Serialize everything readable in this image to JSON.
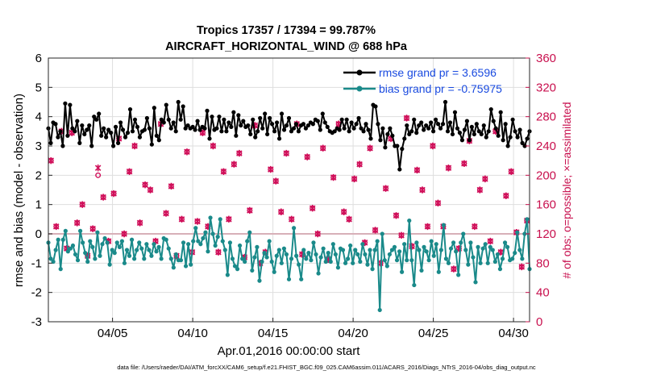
{
  "chart_data": {
    "type": "line",
    "title": [
      "Tropics 17357 / 17394 = 99.787%",
      "AIRCRAFT_HORIZONTAL_WIND @ 688 hPa"
    ],
    "xlabel": "Apr.01,2016 00:00:00 start",
    "ylabel_left": "rmse and bias (model - observation)",
    "ylabel_right": "# of obs: o=possible; ×=assimilated",
    "xlim": [
      1,
      31
    ],
    "ylim_left": [
      -3,
      6
    ],
    "ylim_right": [
      0,
      360
    ],
    "x_ticks": [
      {
        "value": 5,
        "label": "04/05"
      },
      {
        "value": 10,
        "label": "04/10"
      },
      {
        "value": 15,
        "label": "04/15"
      },
      {
        "value": 20,
        "label": "04/20"
      },
      {
        "value": 25,
        "label": "04/25"
      },
      {
        "value": 30,
        "label": "04/30"
      }
    ],
    "y_ticks_left": [
      "-3",
      "-2",
      "-1",
      "0",
      "1",
      "2",
      "3",
      "4",
      "5",
      "6"
    ],
    "y_ticks_right": [
      "0",
      "40",
      "80",
      "120",
      "160",
      "200",
      "240",
      "280",
      "320",
      "360"
    ],
    "grid": true,
    "legend_position": "top-right",
    "series": [
      {
        "name": "rmse grand pr = 3.6596",
        "color": "#000000",
        "marker": "dot",
        "values": [
          3.6,
          3.1,
          3.8,
          3.75,
          3.3,
          3.5,
          3.0,
          4.45,
          3.35,
          4.4,
          3.6,
          3.5,
          3.85,
          3.1,
          3.7,
          3.4,
          3.55,
          3.7,
          3.0,
          4.0,
          3.9,
          4.1,
          3.35,
          3.6,
          3.3,
          3.55,
          3.45,
          3.0,
          3.65,
          3.1,
          3.8,
          3.55,
          3.3,
          3.45,
          4.25,
          3.5,
          3.9,
          3.65,
          3.3,
          3.5,
          3.55,
          3.95,
          3.6,
          3.05,
          4.3,
          3.35,
          3.2,
          3.9,
          3.8,
          4.4,
          3.9,
          3.6,
          3.8,
          3.5,
          4.5,
          3.9,
          4.35,
          3.6,
          3.7,
          3.6,
          3.65,
          3.55,
          3.85,
          3.55,
          3.65,
          3.6,
          4.2,
          3.25,
          4.0,
          3.55,
          3.6,
          4.0,
          3.5,
          3.9,
          3.5,
          3.8,
          3.65,
          4.15,
          3.35,
          4.05,
          3.7,
          3.85,
          3.65,
          3.7,
          3.4,
          3.9,
          3.3,
          3.5,
          3.95,
          3.6,
          4.1,
          3.4,
          3.95,
          3.75,
          3.5,
          3.8,
          3.25,
          4.1,
          3.55,
          3.7,
          3.95,
          3.5,
          3.6,
          3.75,
          3.5,
          3.7,
          3.75,
          3.6,
          3.7,
          3.8,
          3.75,
          3.9,
          3.85,
          3.55,
          4.1,
          3.8,
          3.65,
          3.5,
          3.45,
          3.5,
          3.6,
          3.55,
          3.9,
          3.6,
          3.9,
          3.5,
          3.8,
          3.6,
          3.75,
          3.95,
          3.6,
          3.5,
          3.75,
          3.55,
          3.25,
          4.4,
          4.35,
          3.75,
          3.2,
          3.6,
          2.95,
          3.4,
          3.6,
          3.35,
          3.0,
          3.0,
          2.2,
          2.9,
          3.25,
          3.7,
          3.4,
          3.5,
          3.9,
          3.45,
          3.7,
          3.8,
          3.55,
          3.7,
          3.6,
          3.8,
          3.5,
          3.9,
          3.75,
          3.6,
          3.75,
          4.5,
          3.5,
          3.8,
          3.4,
          4.15,
          3.6,
          3.45,
          3.2,
          3.55,
          3.85,
          3.2,
          3.65,
          3.4,
          3.75,
          3.5,
          3.4,
          3.7,
          3.3,
          3.5,
          4.25,
          3.85,
          3.6,
          3.35,
          4.15,
          3.2,
          3.75,
          3.0,
          3.3,
          3.9,
          3.5,
          3.3,
          3.55,
          3.1,
          3.0,
          3.25,
          3.5
        ]
      },
      {
        "name": "bias grand pr = -0.75975",
        "color": "#1a8a8a",
        "marker": "dot",
        "values": [
          -0.3,
          -0.85,
          -0.95,
          -0.55,
          -0.2,
          -1.2,
          -0.2,
          0.1,
          -0.6,
          -0.5,
          -0.4,
          -0.7,
          -0.9,
          0.1,
          -0.3,
          -0.65,
          -0.95,
          -0.25,
          -0.45,
          -0.85,
          0.05,
          -0.75,
          -0.35,
          -0.15,
          -0.3,
          -1.05,
          -0.55,
          -0.65,
          -0.3,
          -0.45,
          -0.25,
          -1.0,
          -0.55,
          -0.75,
          -0.2,
          -0.85,
          -0.55,
          -0.3,
          -0.5,
          -0.85,
          -0.35,
          -0.55,
          -0.75,
          -0.35,
          -0.6,
          -0.45,
          -0.85,
          -0.15,
          -0.2,
          -0.5,
          -0.85,
          -1.15,
          -0.7,
          -0.9,
          -0.9,
          -0.3,
          -1.1,
          -0.35,
          -1.05,
          -0.25,
          0.2,
          -0.25,
          -0.35,
          -0.15,
          0.05,
          -0.6,
          0.55,
          0.0,
          -0.4,
          -0.1,
          0.5,
          -0.25,
          -0.55,
          -1.4,
          -0.3,
          -0.85,
          -1.1,
          -1.2,
          -0.4,
          -0.85,
          -0.95,
          -0.25,
          0.05,
          -1.25,
          -0.8,
          -0.45,
          -1.6,
          -0.95,
          -0.65,
          -0.8,
          -0.25,
          -0.95,
          -1.3,
          -0.75,
          -0.55,
          -1.0,
          -0.5,
          -0.7,
          -1.55,
          -0.85,
          0.2,
          -0.75,
          -1.05,
          -1.55,
          -0.55,
          -0.85,
          -0.65,
          -0.9,
          -0.3,
          -0.7,
          -1.35,
          -0.8,
          -0.5,
          -0.95,
          -0.65,
          -0.95,
          -0.35,
          -0.7,
          -1.15,
          -0.5,
          -0.55,
          -1.0,
          -0.85,
          -0.4,
          -1.0,
          -0.55,
          -0.7,
          -0.95,
          -0.35,
          -0.7,
          -1.05,
          -0.55,
          -1.2,
          -0.55,
          -0.25,
          -2.6,
          0.0,
          -0.9,
          -1.1,
          -0.7,
          -0.55,
          -0.45,
          -0.9,
          -0.6,
          -1.3,
          -0.35,
          -0.9,
          0.45,
          -0.9,
          -1.75,
          -0.3,
          -0.55,
          -1.25,
          -0.45,
          -0.6,
          -0.9,
          -0.25,
          -0.75,
          -0.35,
          -1.3,
          -0.55,
          0.3,
          -0.85,
          -1.0,
          -0.5,
          -0.3,
          -0.6,
          -1.4,
          -0.3,
          0.0,
          -0.55,
          -1.05,
          -0.3,
          -0.8,
          -1.65,
          -0.45,
          -1.0,
          -0.5,
          -0.35,
          -1.0,
          -0.45,
          -0.55,
          -0.95,
          -0.7,
          -1.2,
          -0.85,
          -0.3,
          -0.45,
          -0.9,
          -0.85,
          -0.65,
          0.05,
          -0.55,
          -0.85,
          0.0,
          0.5,
          -1.2
        ]
      }
    ],
    "obs_counts": {
      "possible": [
        220,
        130,
        260,
        100,
        258,
        135,
        160,
        90,
        127,
        200,
        170,
        110,
        175,
        250,
        120,
        205,
        240,
        135,
        187,
        180,
        110,
        270,
        148,
        185,
        90,
        140,
        232,
        95,
        137,
        258,
        130,
        240,
        95,
        205,
        140,
        215,
        230,
        88,
        152,
        268,
        80,
        95,
        208,
        192,
        150,
        230,
        140,
        270,
        92,
        225,
        155,
        120,
        237,
        85,
        197,
        270,
        150,
        140,
        195,
        215,
        108,
        237,
        125,
        80,
        182,
        250,
        145,
        118,
        278,
        103,
        207,
        180,
        130,
        240,
        162,
        130,
        210,
        72,
        100,
        216,
        247,
        130,
        180,
        195,
        110,
        260,
        95,
        172,
        205,
        122,
        75,
        138
      ],
      "assimilated": [
        220,
        130,
        260,
        100,
        258,
        135,
        160,
        90,
        127,
        210,
        170,
        110,
        175,
        250,
        120,
        205,
        240,
        135,
        187,
        180,
        110,
        270,
        148,
        185,
        90,
        140,
        232,
        95,
        137,
        258,
        130,
        240,
        95,
        205,
        140,
        215,
        230,
        88,
        152,
        268,
        80,
        95,
        208,
        192,
        150,
        230,
        140,
        270,
        92,
        225,
        155,
        120,
        237,
        85,
        197,
        270,
        150,
        140,
        195,
        215,
        108,
        237,
        125,
        80,
        182,
        250,
        145,
        118,
        278,
        103,
        207,
        180,
        130,
        240,
        162,
        130,
        210,
        72,
        100,
        216,
        247,
        130,
        180,
        195,
        110,
        260,
        95,
        172,
        205,
        122,
        75,
        138
      ]
    }
  },
  "footer": "data file: /Users/raeder/DAI/ATM_forcXX/CAM6_setup/f.e21.FHIST_BGC.f09_025.CAM6assim.011/ACARS_2016/Diags_NTrS_2016-04/obs_diag_output.nc"
}
